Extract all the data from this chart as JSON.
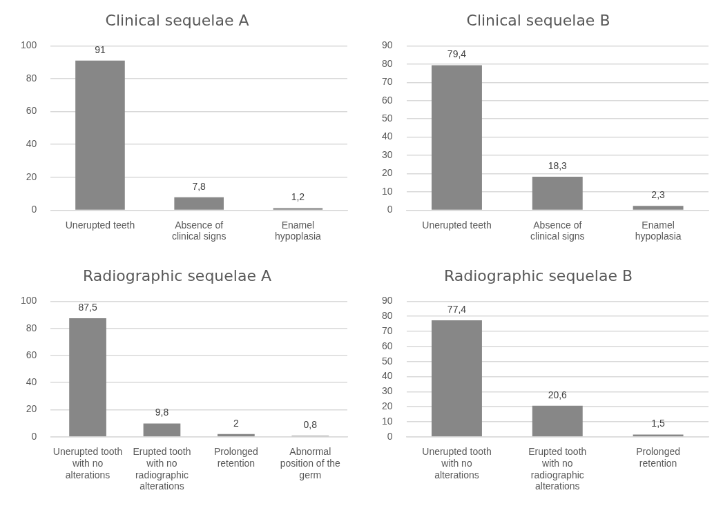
{
  "chart_data": [
    {
      "type": "bar",
      "title": "Clinical sequelae A",
      "categories": [
        "Unerupted teeth",
        "Absence of clinical signs",
        "Enamel hypoplasia"
      ],
      "values": [
        91,
        7.8,
        1.2
      ],
      "value_labels": [
        "91",
        "7,8",
        "1,2"
      ],
      "color": "#878787",
      "ylim": [
        0,
        100
      ],
      "yticks": [
        0,
        20,
        40,
        60,
        80,
        100
      ],
      "grid": "y"
    },
    {
      "type": "bar",
      "title": "Clinical sequelae B",
      "categories": [
        "Unerupted teeth",
        "Absence of clinical signs",
        "Enamel hypoplasia"
      ],
      "values": [
        79.4,
        18.3,
        2.3
      ],
      "value_labels": [
        "79,4",
        "18,3",
        "2,3"
      ],
      "color": "#878787",
      "ylim": [
        0,
        90
      ],
      "yticks": [
        0,
        10,
        20,
        30,
        40,
        50,
        60,
        70,
        80,
        90
      ],
      "grid": "y"
    },
    {
      "type": "bar",
      "title": "Radiographic sequelae A",
      "categories": [
        "Unerupted tooth with no alterations",
        "Erupted tooth with no radiographic alterations",
        "Prolonged retention",
        "Abnormal position of the germ"
      ],
      "values": [
        87.5,
        9.8,
        2,
        0.8
      ],
      "value_labels": [
        "87,5",
        "9,8",
        "2",
        "0,8"
      ],
      "color": "#878787",
      "ylim": [
        0,
        100
      ],
      "yticks": [
        0,
        20,
        40,
        60,
        80,
        100
      ],
      "grid": "y"
    },
    {
      "type": "bar",
      "title": "Radiographic sequelae B",
      "categories": [
        "Unerupted tooth with no alterations",
        "Erupted tooth with no radiographic alterations",
        "Prolonged retention"
      ],
      "values": [
        77.4,
        20.6,
        1.5
      ],
      "value_labels": [
        "77,4",
        "20,6",
        "1,5"
      ],
      "color": "#878787",
      "ylim": [
        0,
        90
      ],
      "yticks": [
        0,
        10,
        20,
        30,
        40,
        50,
        60,
        70,
        80,
        90
      ],
      "grid": "y"
    }
  ]
}
